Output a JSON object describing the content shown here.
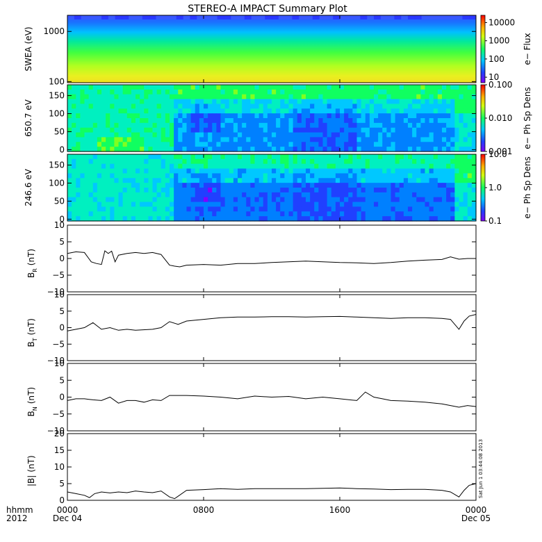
{
  "title": "STEREO-A IMPACT Summary Plot",
  "stamp": "Sat Jun  1 03:44:08 2013",
  "time_axis": {
    "row_label_1": "hhmm",
    "row_label_2": "2012",
    "ticks": [
      {
        "hours": 0,
        "time": "0000",
        "date": "Dec 04"
      },
      {
        "hours": 8,
        "time": "0800",
        "date": ""
      },
      {
        "hours": 16,
        "time": "1600",
        "date": ""
      },
      {
        "hours": 24,
        "time": "0000",
        "date": "Dec 05"
      }
    ],
    "range_hours": [
      0,
      24
    ]
  },
  "colors": {
    "trace": "#000000",
    "frame": "#000000"
  },
  "chart_data": [
    {
      "type": "heatmap",
      "ylabel": "SWEA (eV)",
      "yscale": "log",
      "ylim": [
        95,
        2100
      ],
      "yticks": [
        {
          "v": 100,
          "label": "100"
        },
        {
          "v": 1000,
          "label": "1000"
        }
      ],
      "colorbar": {
        "label": "e− Flux",
        "scale": "log",
        "range": [
          5,
          25000
        ],
        "ticks": [
          {
            "v": 10,
            "label": "10"
          },
          {
            "v": 100,
            "label": "100"
          },
          {
            "v": 1000,
            "label": "1000"
          },
          {
            "v": 10000,
            "label": "10000"
          }
        ]
      },
      "colormap": [
        "#9000ff",
        "#3060ff",
        "#00d8ff",
        "#30ff40",
        "#ffff00",
        "#ff8000",
        "#ff0000"
      ],
      "levels_by_energy_band": [
        0.15,
        0.3,
        0.5,
        0.65,
        0.78,
        0.88
      ]
    },
    {
      "type": "heatmap",
      "ylabel": "650.7 eV",
      "ylim": [
        -5,
        180
      ],
      "yticks": [
        {
          "v": 0,
          "label": "0"
        },
        {
          "v": 50,
          "label": "50"
        },
        {
          "v": 100,
          "label": "100"
        },
        {
          "v": 150,
          "label": "150"
        }
      ],
      "colorbar": {
        "label": "e− Ph Sp Dens",
        "scale": "log",
        "range": [
          0.001,
          0.1
        ],
        "ticks": [
          {
            "v": 0.001,
            "label": "0.001"
          },
          {
            "v": 0.01,
            "label": "0.010"
          },
          {
            "v": 0.1,
            "label": "0.100"
          }
        ]
      }
    },
    {
      "type": "heatmap",
      "ylabel": "246.6 eV",
      "ylim": [
        -5,
        180
      ],
      "yticks": [
        {
          "v": 0,
          "label": "0"
        },
        {
          "v": 50,
          "label": "50"
        },
        {
          "v": 100,
          "label": "100"
        },
        {
          "v": 150,
          "label": "150"
        }
      ],
      "colorbar": {
        "label": "e− Ph Sp Dens",
        "scale": "log",
        "range": [
          0.1,
          10
        ],
        "ticks": [
          {
            "v": 0.1,
            "label": "0.1"
          },
          {
            "v": 1,
            "label": "1.0"
          },
          {
            "v": 10,
            "label": "10.0"
          }
        ]
      }
    },
    {
      "type": "line",
      "ylabel_main": "B",
      "ylabel_sub": "R",
      "ylabel_unit": "(nT)",
      "ylim": [
        -10,
        10
      ],
      "yticks": [
        {
          "v": -10,
          "label": "−10"
        },
        {
          "v": -5,
          "label": "−5"
        },
        {
          "v": 0,
          "label": "0"
        },
        {
          "v": 5,
          "label": "5"
        },
        {
          "v": 10,
          "label": "10"
        }
      ],
      "x": [
        0,
        0.5,
        1,
        1.4,
        1.7,
        2,
        2.2,
        2.4,
        2.6,
        2.8,
        3,
        3.5,
        4,
        4.5,
        5,
        5.5,
        6,
        6.3,
        6.6,
        7,
        8,
        9,
        10,
        11,
        12,
        13,
        14,
        15,
        16,
        17,
        18,
        19,
        20,
        21,
        22,
        22.5,
        23,
        23.5,
        24
      ],
      "y": [
        1.5,
        2,
        1.8,
        -1,
        -1.5,
        -1.8,
        2.3,
        1.5,
        2.2,
        -1,
        1,
        1.5,
        1.8,
        1.5,
        1.8,
        1.2,
        -2,
        -2.3,
        -2.5,
        -2,
        -1.8,
        -2,
        -1.5,
        -1.5,
        -1.2,
        -1,
        -0.8,
        -1,
        -1.2,
        -1.3,
        -1.5,
        -1.2,
        -0.8,
        -0.5,
        -0.3,
        0.5,
        -0.2,
        0,
        0
      ]
    },
    {
      "type": "line",
      "ylabel_main": "B",
      "ylabel_sub": "T",
      "ylabel_unit": "(nT)",
      "ylim": [
        -10,
        10
      ],
      "yticks": [
        {
          "v": -10,
          "label": "−10"
        },
        {
          "v": -5,
          "label": "−5"
        },
        {
          "v": 0,
          "label": "0"
        },
        {
          "v": 5,
          "label": "5"
        },
        {
          "v": 10,
          "label": "10"
        }
      ],
      "x": [
        0,
        0.5,
        1,
        1.5,
        2,
        2.5,
        3,
        3.5,
        4,
        5,
        5.5,
        6,
        6.5,
        7,
        8,
        9,
        10,
        11,
        12,
        13,
        14,
        15,
        16,
        17,
        18,
        19,
        20,
        21,
        22,
        22.5,
        23,
        23.3,
        23.6,
        24
      ],
      "y": [
        -1,
        -0.5,
        0,
        1.5,
        -0.5,
        0,
        -0.8,
        -0.5,
        -0.8,
        -0.5,
        0,
        1.8,
        1,
        2,
        2.5,
        3,
        3.2,
        3.2,
        3.3,
        3.3,
        3.2,
        3.3,
        3.4,
        3.2,
        3,
        2.8,
        3,
        3,
        2.8,
        2.5,
        -0.5,
        2,
        3.5,
        4
      ]
    },
    {
      "type": "line",
      "ylabel_main": "B",
      "ylabel_sub": "N",
      "ylabel_unit": "(nT)",
      "ylim": [
        -10,
        10
      ],
      "yticks": [
        {
          "v": -10,
          "label": "−10"
        },
        {
          "v": -5,
          "label": "−5"
        },
        {
          "v": 0,
          "label": "0"
        },
        {
          "v": 5,
          "label": "5"
        },
        {
          "v": 10,
          "label": "10"
        }
      ],
      "x": [
        0,
        0.5,
        1,
        1.5,
        2,
        2.5,
        3,
        3.5,
        4,
        4.5,
        5,
        5.5,
        6,
        7,
        8,
        9,
        10,
        11,
        12,
        13,
        14,
        15,
        16,
        17,
        17.5,
        18,
        18.5,
        19,
        20,
        21,
        22,
        22.5,
        23,
        23.5,
        24
      ],
      "y": [
        -1,
        -0.5,
        -0.5,
        -0.8,
        -1,
        0,
        -1.8,
        -1,
        -1,
        -1.5,
        -0.8,
        -1,
        0.5,
        0.5,
        0.3,
        0,
        -0.5,
        0.3,
        0,
        0.2,
        -0.5,
        0,
        -0.5,
        -1,
        1.5,
        0,
        -0.5,
        -1,
        -1.2,
        -1.5,
        -2,
        -2.5,
        -3,
        -2.5,
        -2.8
      ]
    },
    {
      "type": "line",
      "ylabel_main": "|B|",
      "ylabel_sub": "",
      "ylabel_unit": "(nT)",
      "ylim": [
        0,
        20
      ],
      "yticks": [
        {
          "v": 0,
          "label": "0"
        },
        {
          "v": 5,
          "label": "5"
        },
        {
          "v": 10,
          "label": "10"
        },
        {
          "v": 15,
          "label": "15"
        },
        {
          "v": 20,
          "label": "20"
        }
      ],
      "x": [
        0,
        0.5,
        1,
        1.3,
        1.6,
        2,
        2.5,
        3,
        3.5,
        4,
        4.5,
        5,
        5.5,
        6,
        6.3,
        7,
        8,
        9,
        10,
        11,
        12,
        13,
        14,
        15,
        16,
        17,
        18,
        19,
        20,
        21,
        22,
        22.5,
        23,
        23.3,
        23.6,
        24
      ],
      "y": [
        2.5,
        2,
        1.5,
        0.8,
        2,
        2.5,
        2.2,
        2.5,
        2.3,
        2.8,
        2.5,
        2.3,
        2.8,
        1,
        0.5,
        3,
        3.2,
        3.5,
        3.3,
        3.5,
        3.5,
        3.5,
        3.5,
        3.6,
        3.7,
        3.5,
        3.4,
        3.2,
        3.3,
        3.3,
        3,
        2.5,
        1,
        3,
        4.5,
        5
      ]
    }
  ]
}
